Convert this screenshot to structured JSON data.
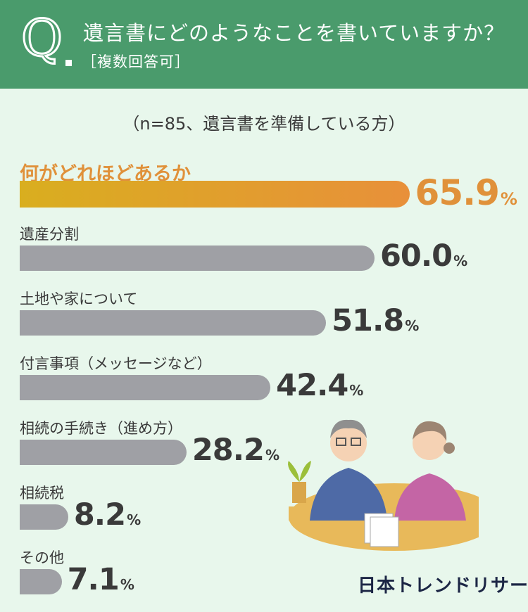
{
  "header": {
    "q_mark": "Q",
    "question": "遺言書にどのようなことを書いていますか？",
    "note": "［複数回答可］"
  },
  "sample_text": "（n=85、遺言書を準備している方）",
  "brand": "日本トレンドリサーチ",
  "colors": {
    "header_bg": "#4a9b6c",
    "page_bg": "#e8f7ec",
    "bar_gray": "#9fa0a5",
    "highlight": "#e0913a",
    "highlight_start": "#d9ae1f"
  },
  "chart_data": {
    "type": "bar",
    "orientation": "horizontal",
    "title": "",
    "xlabel": "",
    "ylabel": "",
    "unit": "%",
    "xlim": [
      0,
      100
    ],
    "categories": [
      "何がどれほどあるか",
      "遺産分割",
      "土地や家について",
      "付言事項（メッセージなど）",
      "相続の手続き（進め方）",
      "相続税",
      "その他"
    ],
    "values": [
      65.9,
      60.0,
      51.8,
      42.4,
      28.2,
      8.2,
      7.1
    ],
    "value_labels": [
      "65.9",
      "60.0",
      "51.8",
      "42.4",
      "28.2",
      "8.2",
      "7.1"
    ],
    "highlight_index": 0,
    "grid": false,
    "legend": "none"
  }
}
